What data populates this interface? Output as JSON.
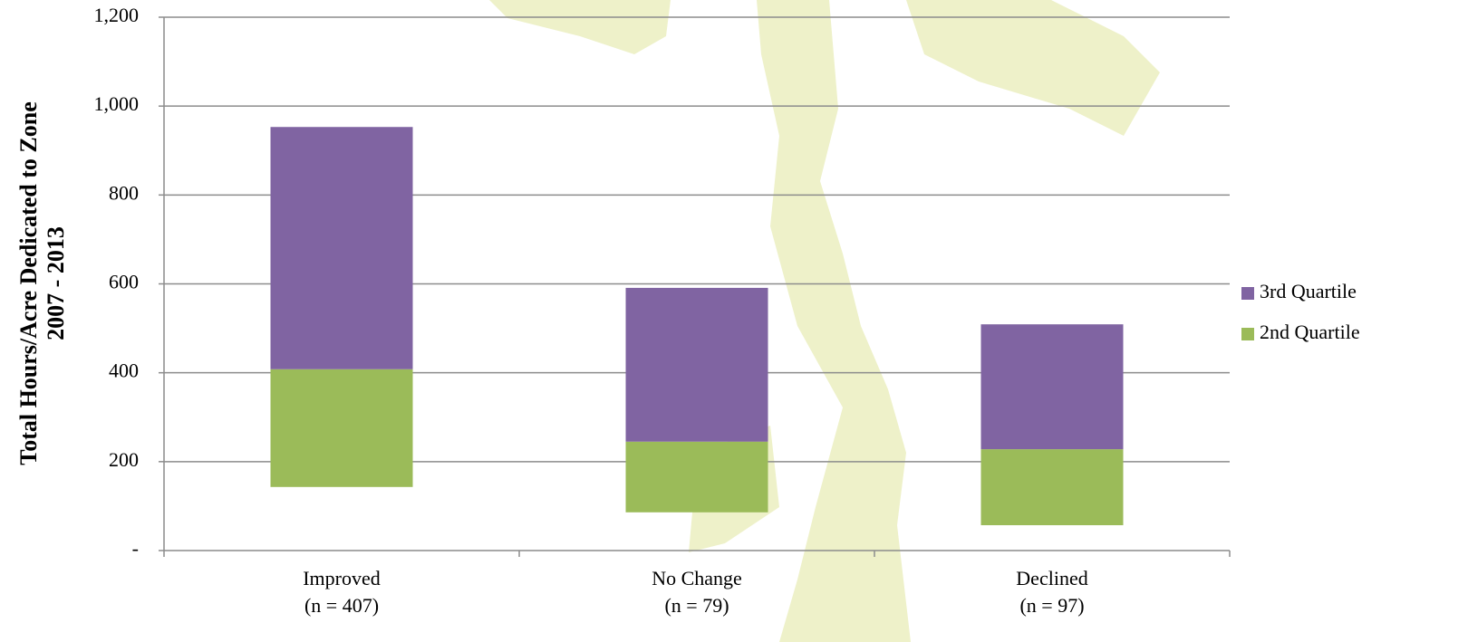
{
  "chart_data": {
    "type": "floating-stacked-bar",
    "y_axis_label": [
      "Total Hours/Acre  Dedicated to Zone",
      "2007 - 2013"
    ],
    "categories": [
      [
        "Improved",
        "(n = 407)"
      ],
      [
        "No Change",
        "(n = 79)"
      ],
      [
        "Declined",
        "(n = 97)"
      ]
    ],
    "base": [
      143,
      86,
      57
    ],
    "series": [
      {
        "name": "2nd Quartile",
        "color": "#9bbb59",
        "values": [
          265,
          159,
          171
        ]
      },
      {
        "name": "3rd Quartile",
        "color": "#8064a2",
        "values": [
          545,
          346,
          281
        ]
      }
    ],
    "ylim": [
      0,
      1200
    ],
    "yticks": [
      {
        "value": 0,
        "label": "-"
      },
      200,
      400,
      600,
      800,
      {
        "value": 1000,
        "label": "1,000"
      },
      {
        "value": 1200,
        "label": "1,200"
      }
    ],
    "grid": true,
    "legend": "right"
  }
}
